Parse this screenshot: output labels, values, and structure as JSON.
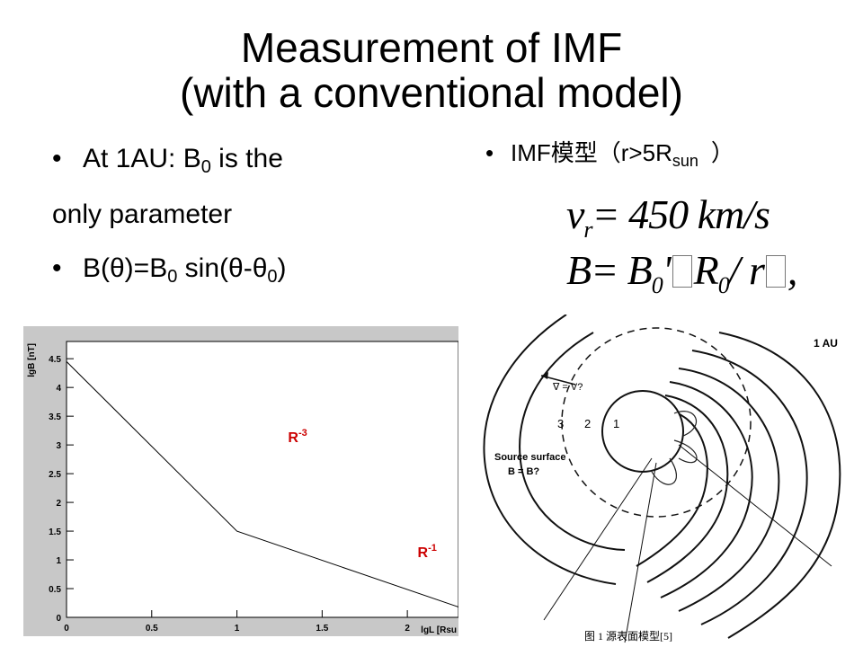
{
  "slide": {
    "title_line1": "Measurement of IMF",
    "title_line2": "(with a conventional model)",
    "left_bullets": {
      "b1_a": "At 1AU: B",
      "b1_sub": "0",
      "b1_b": " is the",
      "b1_cont": "only parameter",
      "b2_a": "B(θ)=B",
      "b2_sub1": "0",
      "b2_b": " sin(θ-θ",
      "b2_sub2": "0",
      "b2_c": ")"
    },
    "right_bullet": {
      "prefix": "IMF模型（r>5R",
      "sub": "sun",
      "suffix": "）"
    },
    "formula": {
      "line1_var": "v",
      "line1_sub": "r",
      "line1_rest": "= 450 km/s",
      "line2_var": "B",
      "line2_eq": "= B",
      "line2_sub": "0",
      "line2_mid": "'",
      "line2_r": "R",
      "line2_rsub": "0",
      "line2_end": "/ r",
      "line2_tail": ","
    },
    "bullet_glyph": "•"
  },
  "chart_data": {
    "type": "line",
    "title": "",
    "xlabel": "lgL [Rsu",
    "ylabel": "lgB [nT]",
    "xlim": [
      0,
      2.3
    ],
    "ylim": [
      0,
      4.8
    ],
    "x_ticks": [
      "0",
      "0.5",
      "1",
      "1.5",
      "2"
    ],
    "y_ticks": [
      "0",
      "0.5",
      "1",
      "1.5",
      "2",
      "2.5",
      "3",
      "3.5",
      "4",
      "4.5"
    ],
    "series": [
      {
        "x": [
          0,
          1,
          2.3
        ],
        "y": [
          4.45,
          1.5,
          0.18
        ]
      }
    ],
    "annotations": [
      {
        "text": "R",
        "sup": "-3",
        "x": 1.3,
        "y": 3.05,
        "color": "#cc0000"
      },
      {
        "text": "R",
        "sup": "-1",
        "x": 2.06,
        "y": 1.05,
        "color": "#cc0000"
      }
    ],
    "grid": false
  },
  "diagram": {
    "label_1au": "1 AU",
    "label_v": "∇ = V?",
    "label_source": "Source surface",
    "label_b": "B = B?",
    "region_3": "3",
    "region_2": "2",
    "region_1": "1",
    "caption": "图 1   源表面模型[5]"
  }
}
